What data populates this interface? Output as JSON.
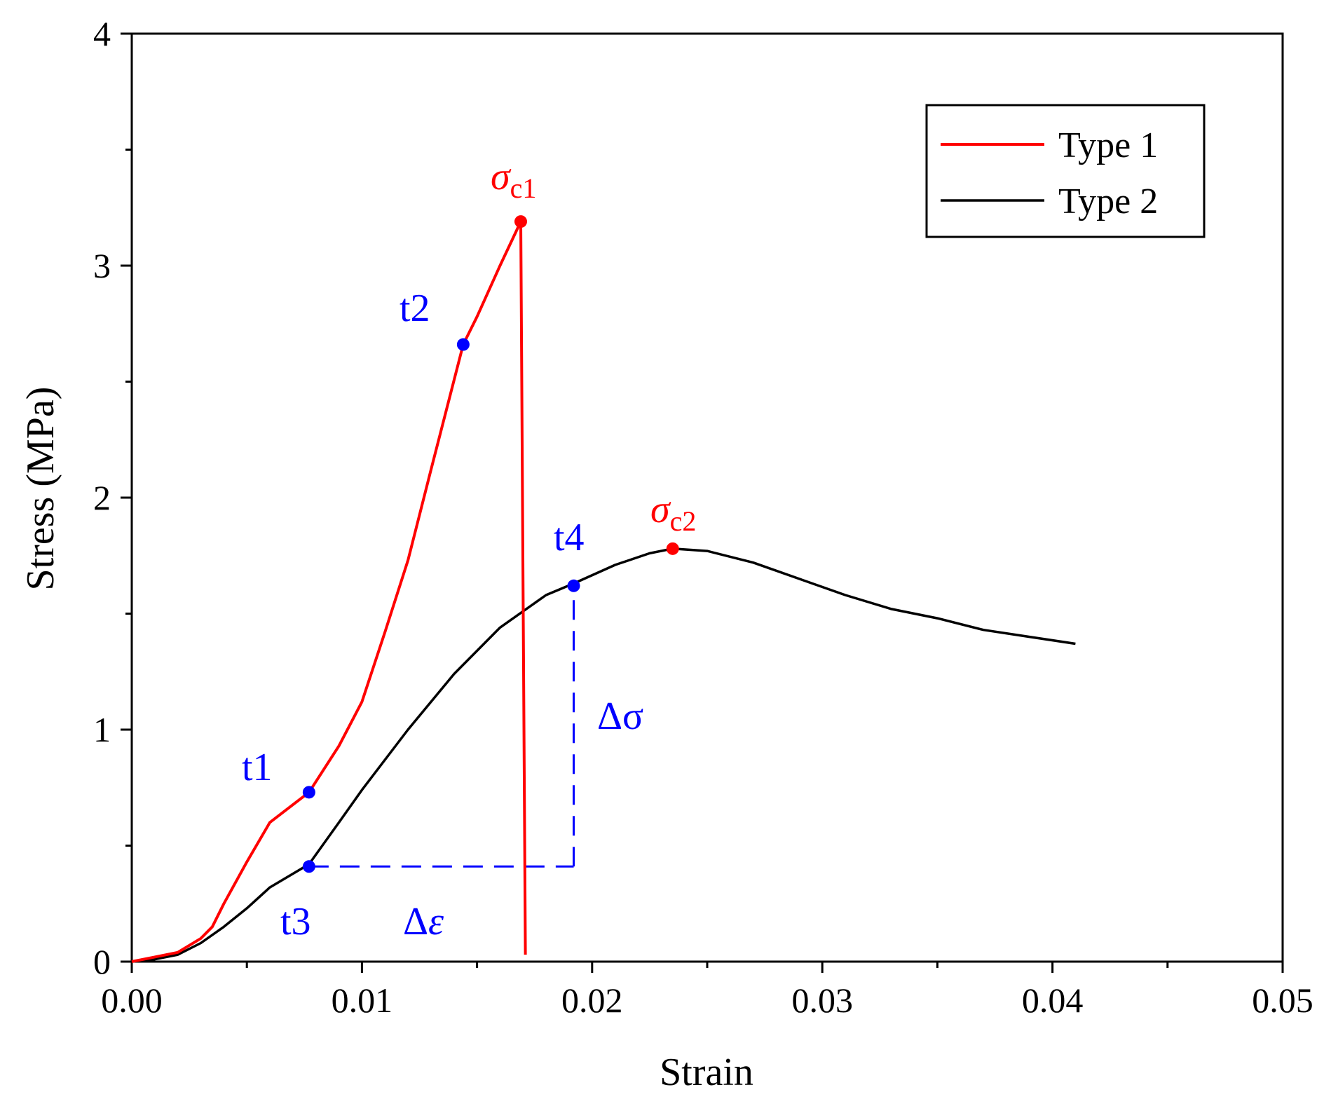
{
  "chart_data": {
    "type": "line",
    "title": "",
    "xlabel": "Strain",
    "ylabel": "Stress (MPa)",
    "xlim": [
      0,
      0.05
    ],
    "ylim": [
      0,
      4
    ],
    "x_ticks": [
      0,
      0.01,
      0.02,
      0.03,
      0.04,
      0.05
    ],
    "x_tick_labels": [
      "0.00",
      "0.01",
      "0.02",
      "0.03",
      "0.04",
      "0.05"
    ],
    "y_ticks": [
      0,
      1,
      2,
      3,
      4
    ],
    "y_tick_labels": [
      "0",
      "1",
      "2",
      "3",
      "4"
    ],
    "grid": false,
    "legend": {
      "position": "top-right",
      "entries": [
        "Type 1",
        "Type 2"
      ]
    },
    "series": [
      {
        "name": "Type 1",
        "color": "#ff0000",
        "x": [
          0.0,
          0.001,
          0.002,
          0.003,
          0.0035,
          0.004,
          0.005,
          0.006,
          0.0077,
          0.009,
          0.01,
          0.011,
          0.012,
          0.013,
          0.0144,
          0.015,
          0.016,
          0.0169,
          0.017,
          0.0171
        ],
        "y": [
          0.0,
          0.02,
          0.04,
          0.1,
          0.15,
          0.25,
          0.43,
          0.6,
          0.73,
          0.93,
          1.12,
          1.42,
          1.73,
          2.12,
          2.66,
          2.78,
          3.0,
          3.19,
          1.6,
          0.03
        ]
      },
      {
        "name": "Type 2",
        "color": "#000000",
        "x": [
          0.0,
          0.001,
          0.002,
          0.003,
          0.004,
          0.005,
          0.006,
          0.0077,
          0.009,
          0.01,
          0.012,
          0.014,
          0.016,
          0.018,
          0.0192,
          0.021,
          0.0225,
          0.0235,
          0.025,
          0.027,
          0.029,
          0.031,
          0.033,
          0.035,
          0.037,
          0.039,
          0.041
        ],
        "y": [
          0.0,
          0.01,
          0.03,
          0.08,
          0.15,
          0.23,
          0.32,
          0.42,
          0.6,
          0.74,
          1.0,
          1.24,
          1.44,
          1.58,
          1.63,
          1.71,
          1.76,
          1.78,
          1.77,
          1.72,
          1.65,
          1.58,
          1.52,
          1.48,
          1.43,
          1.4,
          1.37
        ]
      }
    ],
    "markers": [
      {
        "label": "t1",
        "x": 0.0077,
        "y": 0.73,
        "color": "#0000ff"
      },
      {
        "label": "t2",
        "x": 0.0144,
        "y": 2.66,
        "color": "#0000ff"
      },
      {
        "label": "t3",
        "x": 0.0077,
        "y": 0.41,
        "color": "#0000ff"
      },
      {
        "label": "t4",
        "x": 0.0192,
        "y": 1.62,
        "color": "#0000ff"
      },
      {
        "label": "σc1",
        "x": 0.0169,
        "y": 3.19,
        "color": "#ff0000"
      },
      {
        "label": "σc2",
        "x": 0.0235,
        "y": 1.78,
        "color": "#ff0000"
      }
    ],
    "annotations": {
      "t1": "t1",
      "t2": "t2",
      "t3": "t3",
      "t4": "t4",
      "sigma": "σ",
      "sub_c1": "c1",
      "sub_c2": "c2",
      "delta_sigma": "Δσ",
      "delta_epsilon_delta": "Δ",
      "delta_epsilon_var": "ε"
    },
    "guide_lines": {
      "color": "#0000ff",
      "horizontal": {
        "x_from": 0.0077,
        "x_to": 0.0192,
        "y": 0.41
      },
      "vertical": {
        "x": 0.0192,
        "y_from": 0.41,
        "y_to": 1.62
      }
    },
    "colors": {
      "annotation_blue": "#0000ff",
      "peak_red": "#ff0000",
      "axis": "#000000"
    }
  }
}
